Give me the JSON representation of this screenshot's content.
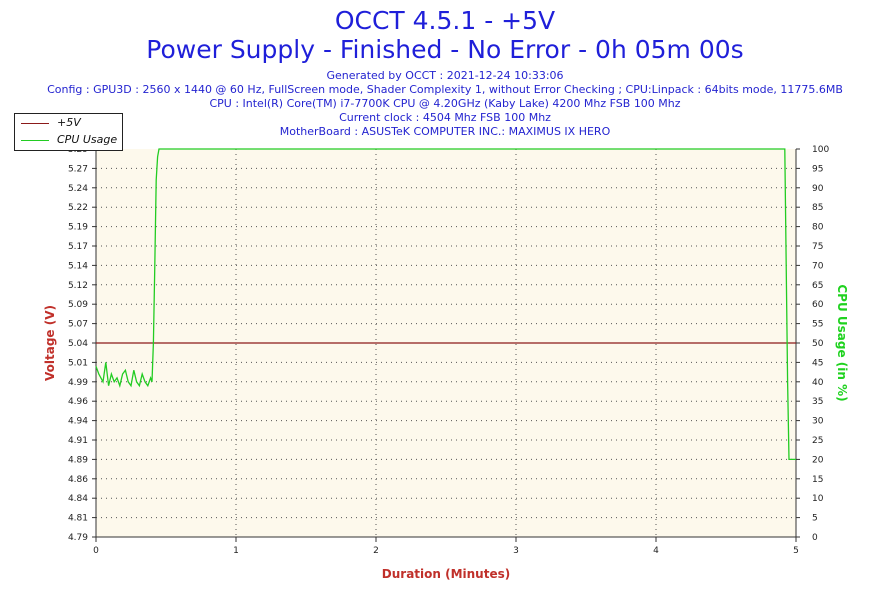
{
  "header": {
    "title": "OCCT 4.5.1 - +5V",
    "subtitle": "Power Supply - Finished - No Error - 0h 05m 00s",
    "info_lines": [
      "Generated by OCCT : 2021-12-24 10:33:06",
      "Config : GPU3D : 2560 x 1440 @ 60 Hz, FullScreen mode, Shader Complexity 1, without Error Checking ; CPU:Linpack : 64bits mode, 11775.6MB",
      "CPU : Intel(R) Core(TM) i7-7700K CPU @ 4.20GHz (Kaby Lake) 4200 Mhz FSB 100 Mhz",
      "Current clock : 4504 Mhz FSB 100 Mhz",
      "MotherBoard : ASUSTeK COMPUTER INC.: MAXIMUS IX HERO"
    ]
  },
  "legend": {
    "items": [
      {
        "label": "+5V",
        "color": "#8b1a1a"
      },
      {
        "label": "CPU Usage",
        "color": "#22cc22"
      }
    ]
  },
  "colors": {
    "plot_background": "#fdf9ec",
    "grid": "#555555",
    "voltage_axis": "#c0302a",
    "cpu_axis": "#1fd21f",
    "title": "#1f1fd9"
  },
  "chart_data": {
    "type": "line",
    "xlabel": "Duration (Minutes)",
    "ylabel": "Voltage (V)",
    "y2label": "CPU Usage (in %)",
    "xlim": [
      0,
      5
    ],
    "ylim": [
      4.79,
      5.29
    ],
    "y2lim": [
      0,
      100
    ],
    "x_ticks": [
      "0",
      "1",
      "2",
      "3",
      "4",
      "5"
    ],
    "y_ticks": [
      "4.79",
      "4.81",
      "4.84",
      "4.86",
      "4.89",
      "4.91",
      "4.94",
      "4.96",
      "4.99",
      "5.01",
      "5.04",
      "5.07",
      "5.09",
      "5.12",
      "5.14",
      "5.17",
      "5.19",
      "5.22",
      "5.24",
      "5.27",
      "5.29"
    ],
    "y2_ticks": [
      "0",
      "5",
      "10",
      "15",
      "20",
      "25",
      "30",
      "35",
      "40",
      "45",
      "50",
      "55",
      "60",
      "65",
      "70",
      "75",
      "80",
      "85",
      "90",
      "95",
      "100"
    ],
    "grid": true,
    "legend_position": "top-left",
    "series": [
      {
        "name": "+5V",
        "axis": "left",
        "x": [
          0,
          5
        ],
        "y": [
          5.04,
          5.04
        ]
      },
      {
        "name": "CPU Usage",
        "axis": "right",
        "x": [
          0,
          0.02,
          0.05,
          0.07,
          0.09,
          0.11,
          0.13,
          0.15,
          0.17,
          0.19,
          0.21,
          0.23,
          0.25,
          0.27,
          0.29,
          0.31,
          0.33,
          0.35,
          0.37,
          0.39,
          0.4,
          0.41,
          0.42,
          0.43,
          0.44,
          0.45,
          4.91,
          4.92,
          4.93,
          4.94,
          4.95,
          5.0
        ],
        "y": [
          44,
          42,
          40,
          45,
          39,
          42,
          40,
          41,
          39,
          42,
          43,
          40,
          39,
          43,
          40,
          39,
          42,
          40,
          39,
          41,
          40,
          50,
          70,
          92,
          98,
          100,
          100,
          100,
          70,
          40,
          20,
          20
        ]
      }
    ]
  }
}
